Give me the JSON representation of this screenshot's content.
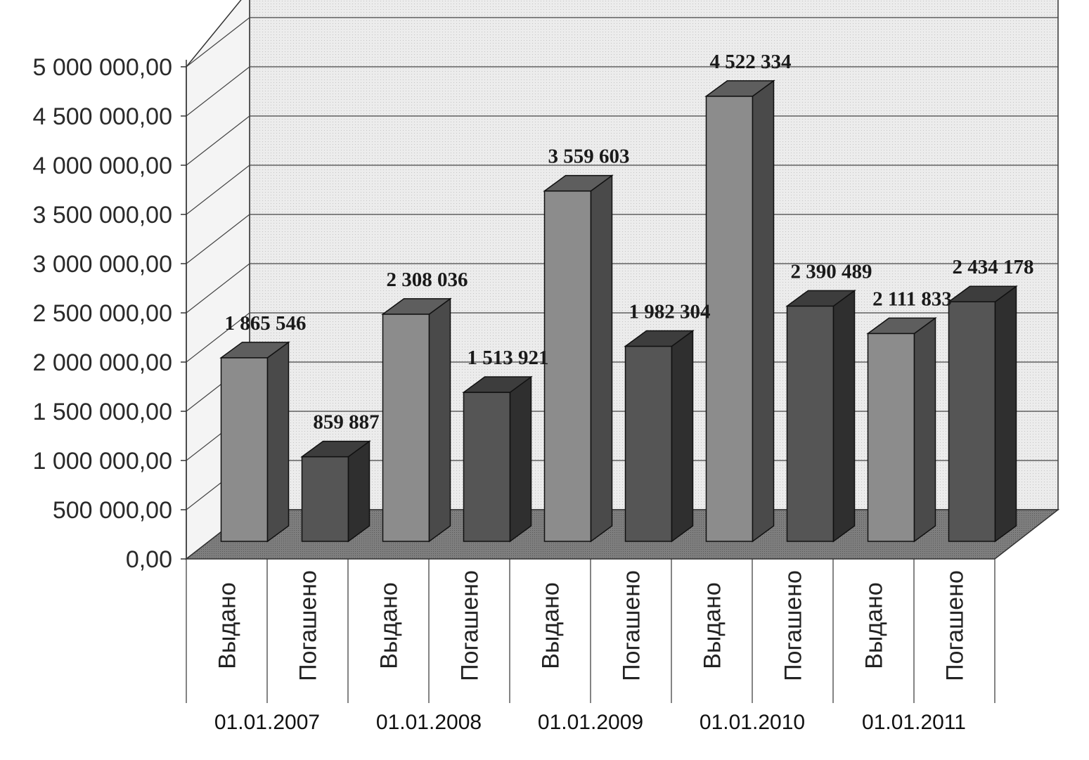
{
  "chart_data": {
    "type": "bar",
    "style": "3d-clustered-column",
    "groups": [
      "01.01.2007",
      "01.01.2008",
      "01.01.2009",
      "01.01.2010",
      "01.01.2011"
    ],
    "categories": [
      "Выдано",
      "Погашено",
      "Выдано",
      "Погашено",
      "Выдано",
      "Погашено",
      "Выдано",
      "Погашено",
      "Выдано",
      "Погашено"
    ],
    "values": [
      1865546,
      859887,
      2308036,
      1513921,
      3559603,
      1982304,
      4522334,
      2390489,
      2111833,
      2434178
    ],
    "data_labels": [
      "1 865 546",
      "859 887",
      "2 308 036",
      "1 513 921",
      "3 559 603",
      "1 982 304",
      "4 522 334",
      "2 390 489",
      "2 111 833",
      "2 434 178"
    ],
    "yticks": [
      "0,00",
      "500 000,00",
      "1 000 000,00",
      "1 500 000,00",
      "2 000 000,00",
      "2 500 000,00",
      "3 000 000,00",
      "3 500 000,00",
      "4 000 000,00",
      "4 500 000,00",
      "5 000 000,00"
    ],
    "ylim": [
      0,
      5000000
    ],
    "grid": true,
    "legend": "none",
    "colors": {
      "bar_issued": "#8c8c8c",
      "bar_repaid": "#555555",
      "wall": "#e8e8e8",
      "floor": "#7a7a7a"
    }
  }
}
